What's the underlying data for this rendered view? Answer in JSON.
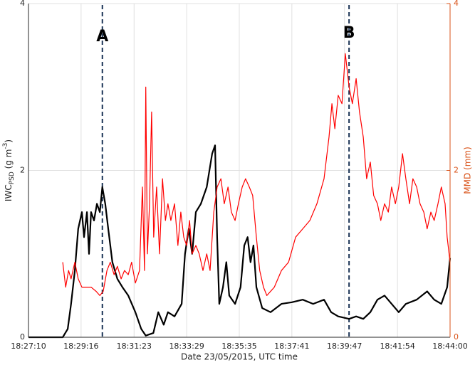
{
  "chart_data": {
    "type": "line",
    "xlabel": "Date 23/05/2015, UTC time",
    "ylabel": [
      "IWC",
      "PSD",
      " (g m",
      "-3",
      ")"
    ],
    "y2label": "MMD (mm)",
    "xlim": [
      0,
      1010
    ],
    "xticks": [
      {
        "value": 0,
        "label": "18:27:10"
      },
      {
        "value": 126,
        "label": "18:29:16"
      },
      {
        "value": 253,
        "label": "18:31:23"
      },
      {
        "value": 379,
        "label": "18:33:29"
      },
      {
        "value": 505,
        "label": "18:35:35"
      },
      {
        "value": 631,
        "label": "18:37:41"
      },
      {
        "value": 757,
        "label": "18:39:47"
      },
      {
        "value": 884,
        "label": "18:41:54"
      },
      {
        "value": 1010,
        "label": "18:44:00"
      }
    ],
    "ylim": [
      0,
      4
    ],
    "yticks": [
      0,
      2,
      4
    ],
    "y2lim": [
      0,
      4
    ],
    "y2ticks": [
      0,
      2,
      4
    ],
    "y2color": "#d95319",
    "grid": true,
    "annotations": [
      {
        "text": "A",
        "x": 177
      },
      {
        "text": "B",
        "x": 768
      }
    ],
    "series": [
      {
        "name": "IWC",
        "color": "#000000",
        "axis": "y",
        "x": [
          0,
          82,
          94,
          102,
          111,
          119,
          128,
          133,
          140,
          145,
          150,
          157,
          164,
          171,
          177,
          184,
          191,
          201,
          213,
          225,
          239,
          256,
          270,
          281,
          299,
          311,
          324,
          334,
          350,
          367,
          375,
          384,
          392,
          401,
          413,
          427,
          440,
          447,
          452,
          457,
          466,
          474,
          481,
          495,
          508,
          517,
          525,
          532,
          539,
          546,
          560,
          580,
          606,
          631,
          657,
          682,
          708,
          725,
          742,
          768,
          785,
          802,
          819,
          836,
          853,
          870,
          887,
          904,
          930,
          955,
          972,
          989,
          1003,
          1010
        ],
        "values": [
          0,
          0,
          0.1,
          0.4,
          0.8,
          1.3,
          1.5,
          1.2,
          1.5,
          1.0,
          1.5,
          1.4,
          1.6,
          1.5,
          1.8,
          1.6,
          1.3,
          0.9,
          0.7,
          0.6,
          0.5,
          0.3,
          0.1,
          0.02,
          0.05,
          0.3,
          0.15,
          0.3,
          0.25,
          0.4,
          1.0,
          1.3,
          1.0,
          1.5,
          1.6,
          1.8,
          2.2,
          2.3,
          1.2,
          0.4,
          0.6,
          0.9,
          0.5,
          0.4,
          0.6,
          1.1,
          1.2,
          0.9,
          1.1,
          0.6,
          0.35,
          0.3,
          0.4,
          0.42,
          0.45,
          0.4,
          0.45,
          0.3,
          0.25,
          0.22,
          0.25,
          0.22,
          0.3,
          0.45,
          0.5,
          0.4,
          0.3,
          0.4,
          0.45,
          0.55,
          0.45,
          0.4,
          0.6,
          0.95
        ]
      },
      {
        "name": "MMD",
        "color": "#ff0000",
        "axis": "y2",
        "x": [
          82,
          89,
          96,
          102,
          111,
          119,
          128,
          136,
          150,
          162,
          171,
          179,
          188,
          196,
          205,
          213,
          222,
          230,
          239,
          247,
          256,
          266,
          273,
          278,
          281,
          285,
          290,
          295,
          300,
          307,
          314,
          321,
          328,
          334,
          341,
          350,
          358,
          365,
          372,
          379,
          386,
          392,
          401,
          409,
          418,
          427,
          435,
          444,
          452,
          461,
          469,
          478,
          486,
          495,
          503,
          512,
          520,
          529,
          537,
          546,
          554,
          563,
          571,
          589,
          606,
          623,
          640,
          657,
          674,
          691,
          708,
          720,
          727,
          734,
          742,
          751,
          759,
          768,
          776,
          785,
          793,
          802,
          810,
          819,
          827,
          836,
          844,
          853,
          862,
          870,
          879,
          887,
          896,
          904,
          913,
          921,
          930,
          938,
          947,
          955,
          964,
          972,
          981,
          989,
          998,
          1003,
          1010
        ],
        "values": [
          0.9,
          0.6,
          0.8,
          0.7,
          0.9,
          0.7,
          0.6,
          0.6,
          0.6,
          0.55,
          0.5,
          0.55,
          0.8,
          0.9,
          0.75,
          0.85,
          0.7,
          0.8,
          0.75,
          0.9,
          0.65,
          0.8,
          1.8,
          0.8,
          3.0,
          1.0,
          1.6,
          2.7,
          1.2,
          1.8,
          1.0,
          1.9,
          1.4,
          1.6,
          1.4,
          1.6,
          1.1,
          1.5,
          1.2,
          1.1,
          1.4,
          1.0,
          1.1,
          1.0,
          0.8,
          1.0,
          0.8,
          1.5,
          1.8,
          1.9,
          1.6,
          1.8,
          1.5,
          1.4,
          1.6,
          1.8,
          1.9,
          1.8,
          1.7,
          1.2,
          0.8,
          0.6,
          0.5,
          0.6,
          0.8,
          0.9,
          1.2,
          1.3,
          1.4,
          1.6,
          1.9,
          2.4,
          2.8,
          2.5,
          2.9,
          2.8,
          3.4,
          3.0,
          2.8,
          3.1,
          2.7,
          2.4,
          1.9,
          2.1,
          1.7,
          1.6,
          1.4,
          1.6,
          1.5,
          1.8,
          1.6,
          1.8,
          2.2,
          1.9,
          1.6,
          1.9,
          1.8,
          1.6,
          1.5,
          1.3,
          1.5,
          1.4,
          1.6,
          1.8,
          1.6,
          1.2,
          0.9
        ]
      }
    ]
  }
}
